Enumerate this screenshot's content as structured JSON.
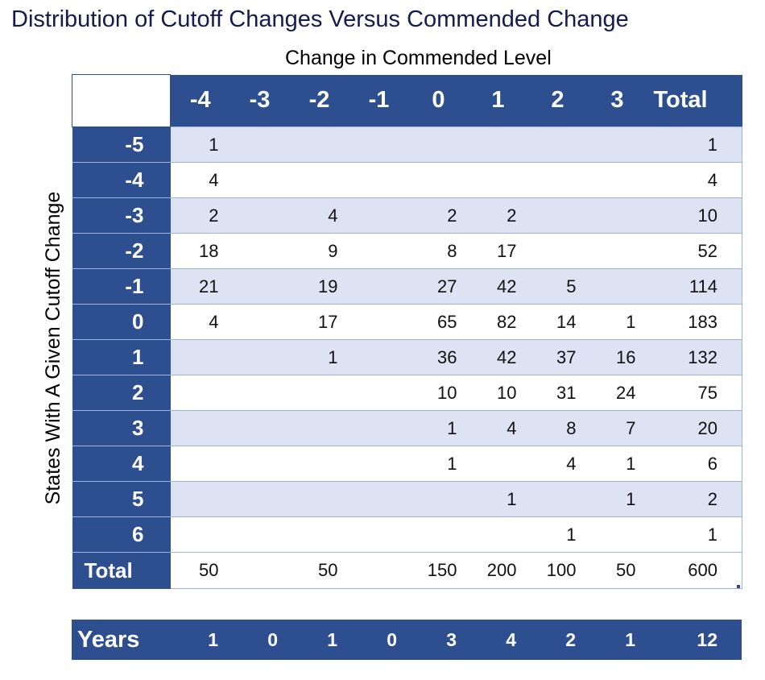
{
  "title": "Distribution of Cutoff Changes Versus Commended Change",
  "chart_data": {
    "type": "table",
    "title": "Distribution of Cutoff Changes Versus Commended Change",
    "column_axis_label": "Change in Commended Level",
    "row_axis_label": "States With A Given Cutoff Change",
    "columns": [
      "-4",
      "-3",
      "-2",
      "-1",
      "0",
      "1",
      "2",
      "3",
      "Total"
    ],
    "rows": [
      {
        "label": "-5",
        "values": [
          "1",
          "",
          "",
          "",
          "",
          "",
          "",
          "",
          "1"
        ]
      },
      {
        "label": "-4",
        "values": [
          "4",
          "",
          "",
          "",
          "",
          "",
          "",
          "",
          "4"
        ]
      },
      {
        "label": "-3",
        "values": [
          "2",
          "",
          "4",
          "",
          "2",
          "2",
          "",
          "",
          "10"
        ]
      },
      {
        "label": "-2",
        "values": [
          "18",
          "",
          "9",
          "",
          "8",
          "17",
          "",
          "",
          "52"
        ]
      },
      {
        "label": "-1",
        "values": [
          "21",
          "",
          "19",
          "",
          "27",
          "42",
          "5",
          "",
          "114"
        ]
      },
      {
        "label": "0",
        "values": [
          "4",
          "",
          "17",
          "",
          "65",
          "82",
          "14",
          "1",
          "183"
        ]
      },
      {
        "label": "1",
        "values": [
          "",
          "",
          "1",
          "",
          "36",
          "42",
          "37",
          "16",
          "132"
        ]
      },
      {
        "label": "2",
        "values": [
          "",
          "",
          "",
          "",
          "10",
          "10",
          "31",
          "24",
          "75"
        ]
      },
      {
        "label": "3",
        "values": [
          "",
          "",
          "",
          "",
          "1",
          "4",
          "8",
          "7",
          "20"
        ]
      },
      {
        "label": "4",
        "values": [
          "",
          "",
          "",
          "",
          "1",
          "",
          "4",
          "1",
          "6"
        ]
      },
      {
        "label": "5",
        "values": [
          "",
          "",
          "",
          "",
          "",
          "1",
          "",
          "1",
          "2"
        ]
      },
      {
        "label": "6",
        "values": [
          "",
          "",
          "",
          "",
          "",
          "",
          "1",
          "",
          "1"
        ]
      }
    ],
    "total_row": {
      "label": "Total",
      "values": [
        "50",
        "",
        "50",
        "",
        "150",
        "200",
        "100",
        "50",
        "600"
      ]
    },
    "years_row": {
      "label": "Years",
      "values": [
        "1",
        "0",
        "1",
        "0",
        "3",
        "4",
        "2",
        "1",
        "12"
      ]
    }
  },
  "colors": {
    "header_fill": "#2e4f8f",
    "band_fill": "#dde3f3",
    "grid_line": "#9eb2dc",
    "title_text": "#141b4d"
  }
}
